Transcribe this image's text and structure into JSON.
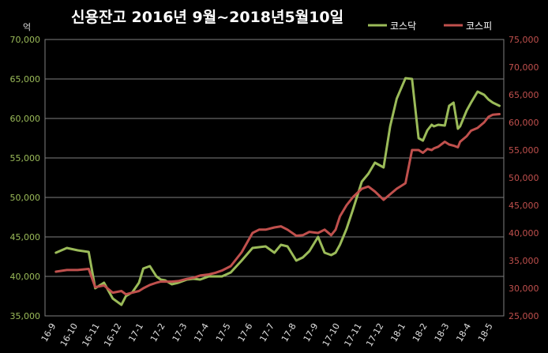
{
  "chart_data": {
    "type": "line",
    "title": "신용잔고  2016년 9월~2018년5월10일",
    "y_unit_label": "억",
    "categories": [
      "16-9",
      "16-10",
      "16-11",
      "16-12",
      "17-1",
      "17-2",
      "17-3",
      "17-4",
      "17-5",
      "17-6",
      "17-7",
      "17-8",
      "17-9",
      "17-10",
      "17-11",
      "17-12",
      "18-1",
      "18-2",
      "18-3",
      "18-4",
      "18-5"
    ],
    "x": [
      0,
      0.5,
      1,
      1.5,
      1.8,
      2.2,
      2.6,
      3,
      3.2,
      3.5,
      3.8,
      4,
      4.3,
      4.6,
      4.8,
      5,
      5.3,
      5.6,
      6,
      6.3,
      6.6,
      7,
      7.3,
      7.6,
      8,
      8.5,
      9,
      9.3,
      9.6,
      10,
      10.3,
      10.6,
      11,
      11.3,
      11.6,
      12,
      12.3,
      12.6,
      12.8,
      13,
      13.3,
      13.6,
      14,
      14.3,
      14.6,
      15,
      15.3,
      15.6,
      16,
      16.3,
      16.6,
      16.8,
      17,
      17.2,
      17.3,
      17.5,
      17.8,
      18,
      18.2,
      18.4,
      18.5,
      18.8,
      19,
      19.3,
      19.6,
      19.8,
      20,
      20.3
    ],
    "ylim_left": [
      35000,
      70000
    ],
    "ylim_right": [
      25000,
      75000
    ],
    "left_ticks": [
      "35,000",
      "40,000",
      "45,000",
      "50,000",
      "55,000",
      "60,000",
      "65,000",
      "70,000"
    ],
    "right_ticks": [
      "25,000",
      "30,000",
      "35,000",
      "40,000",
      "45,000",
      "50,000",
      "55,000",
      "60,000",
      "65,000",
      "70,000",
      "75,000"
    ],
    "grid": true,
    "legend_position": "top-right",
    "series": [
      {
        "name": "코스닥",
        "axis": "left",
        "color": "#9bbb59",
        "values": [
          43000,
          43600,
          43300,
          43100,
          38500,
          39200,
          37200,
          36400,
          37500,
          38000,
          39200,
          41000,
          41300,
          40000,
          39600,
          39500,
          39000,
          39200,
          39600,
          39700,
          39600,
          40000,
          40000,
          40000,
          40500,
          42000,
          43600,
          43700,
          43800,
          43000,
          44000,
          43800,
          42000,
          42400,
          43200,
          45000,
          43000,
          42700,
          43000,
          44000,
          46000,
          48500,
          52000,
          53000,
          54400,
          53800,
          59000,
          62500,
          65100,
          65000,
          57500,
          57200,
          58500,
          59200,
          59000,
          59200,
          59100,
          61600,
          62000,
          58700,
          59000,
          61000,
          62000,
          63400,
          63000,
          62400,
          62000,
          61600
        ]
      },
      {
        "name": "코스피",
        "axis": "right",
        "color": "#c0504d",
        "values": [
          33000,
          33300,
          33300,
          33500,
          30200,
          30500,
          29200,
          29500,
          28900,
          29200,
          29500,
          30000,
          30600,
          31000,
          31200,
          31200,
          31200,
          31300,
          31700,
          31900,
          32300,
          32500,
          32800,
          33200,
          34000,
          36500,
          40000,
          40600,
          40600,
          41000,
          41200,
          40600,
          39500,
          39600,
          40200,
          40000,
          40600,
          39600,
          40600,
          43000,
          45000,
          46500,
          48000,
          48400,
          47500,
          46000,
          47000,
          48000,
          49000,
          55000,
          55000,
          54500,
          55200,
          55000,
          55300,
          55600,
          56500,
          56000,
          55800,
          55500,
          56500,
          57500,
          58500,
          59000,
          60000,
          61000,
          61400,
          61500
        ]
      }
    ]
  }
}
